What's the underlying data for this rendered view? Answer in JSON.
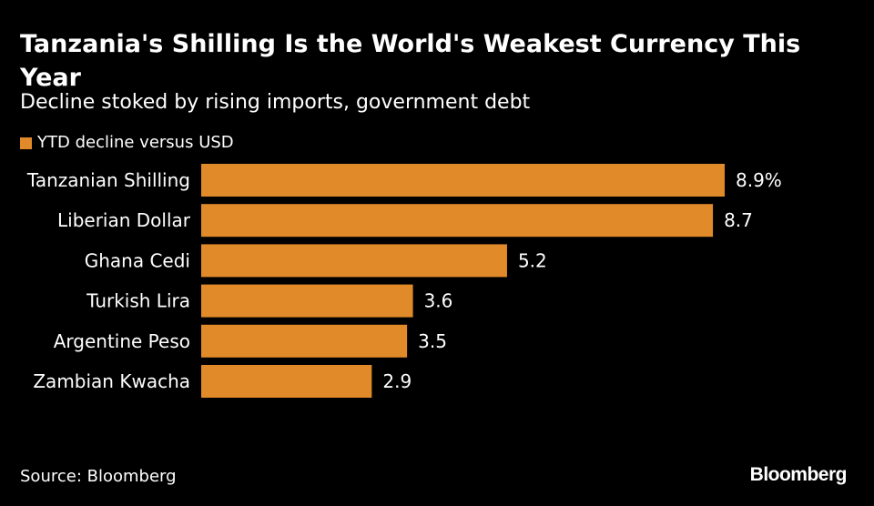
{
  "title": "Tanzania's Shilling Is the World's Weakest Currency This Year",
  "subtitle": "Decline stoked by rising imports, government debt",
  "legend": {
    "label": "YTD decline versus USD",
    "color": "#e08a2a"
  },
  "source": "Source: Bloomberg",
  "brand": "Bloomberg",
  "chart_data": {
    "type": "bar",
    "orientation": "horizontal",
    "categories": [
      "Tanzanian Shilling",
      "Liberian Dollar",
      "Ghana Cedi",
      "Turkish Lira",
      "Argentine Peso",
      "Zambian Kwacha"
    ],
    "series": [
      {
        "name": "YTD decline versus USD",
        "values": [
          8.9,
          8.7,
          5.2,
          3.6,
          3.5,
          2.9
        ],
        "color": "#e08a2a"
      }
    ],
    "data_labels": [
      "8.9%",
      "8.7",
      "5.2",
      "3.6",
      "3.5",
      "2.9"
    ],
    "xlim": [
      0,
      8.9
    ],
    "grid": false,
    "legend_position": "top-left"
  }
}
